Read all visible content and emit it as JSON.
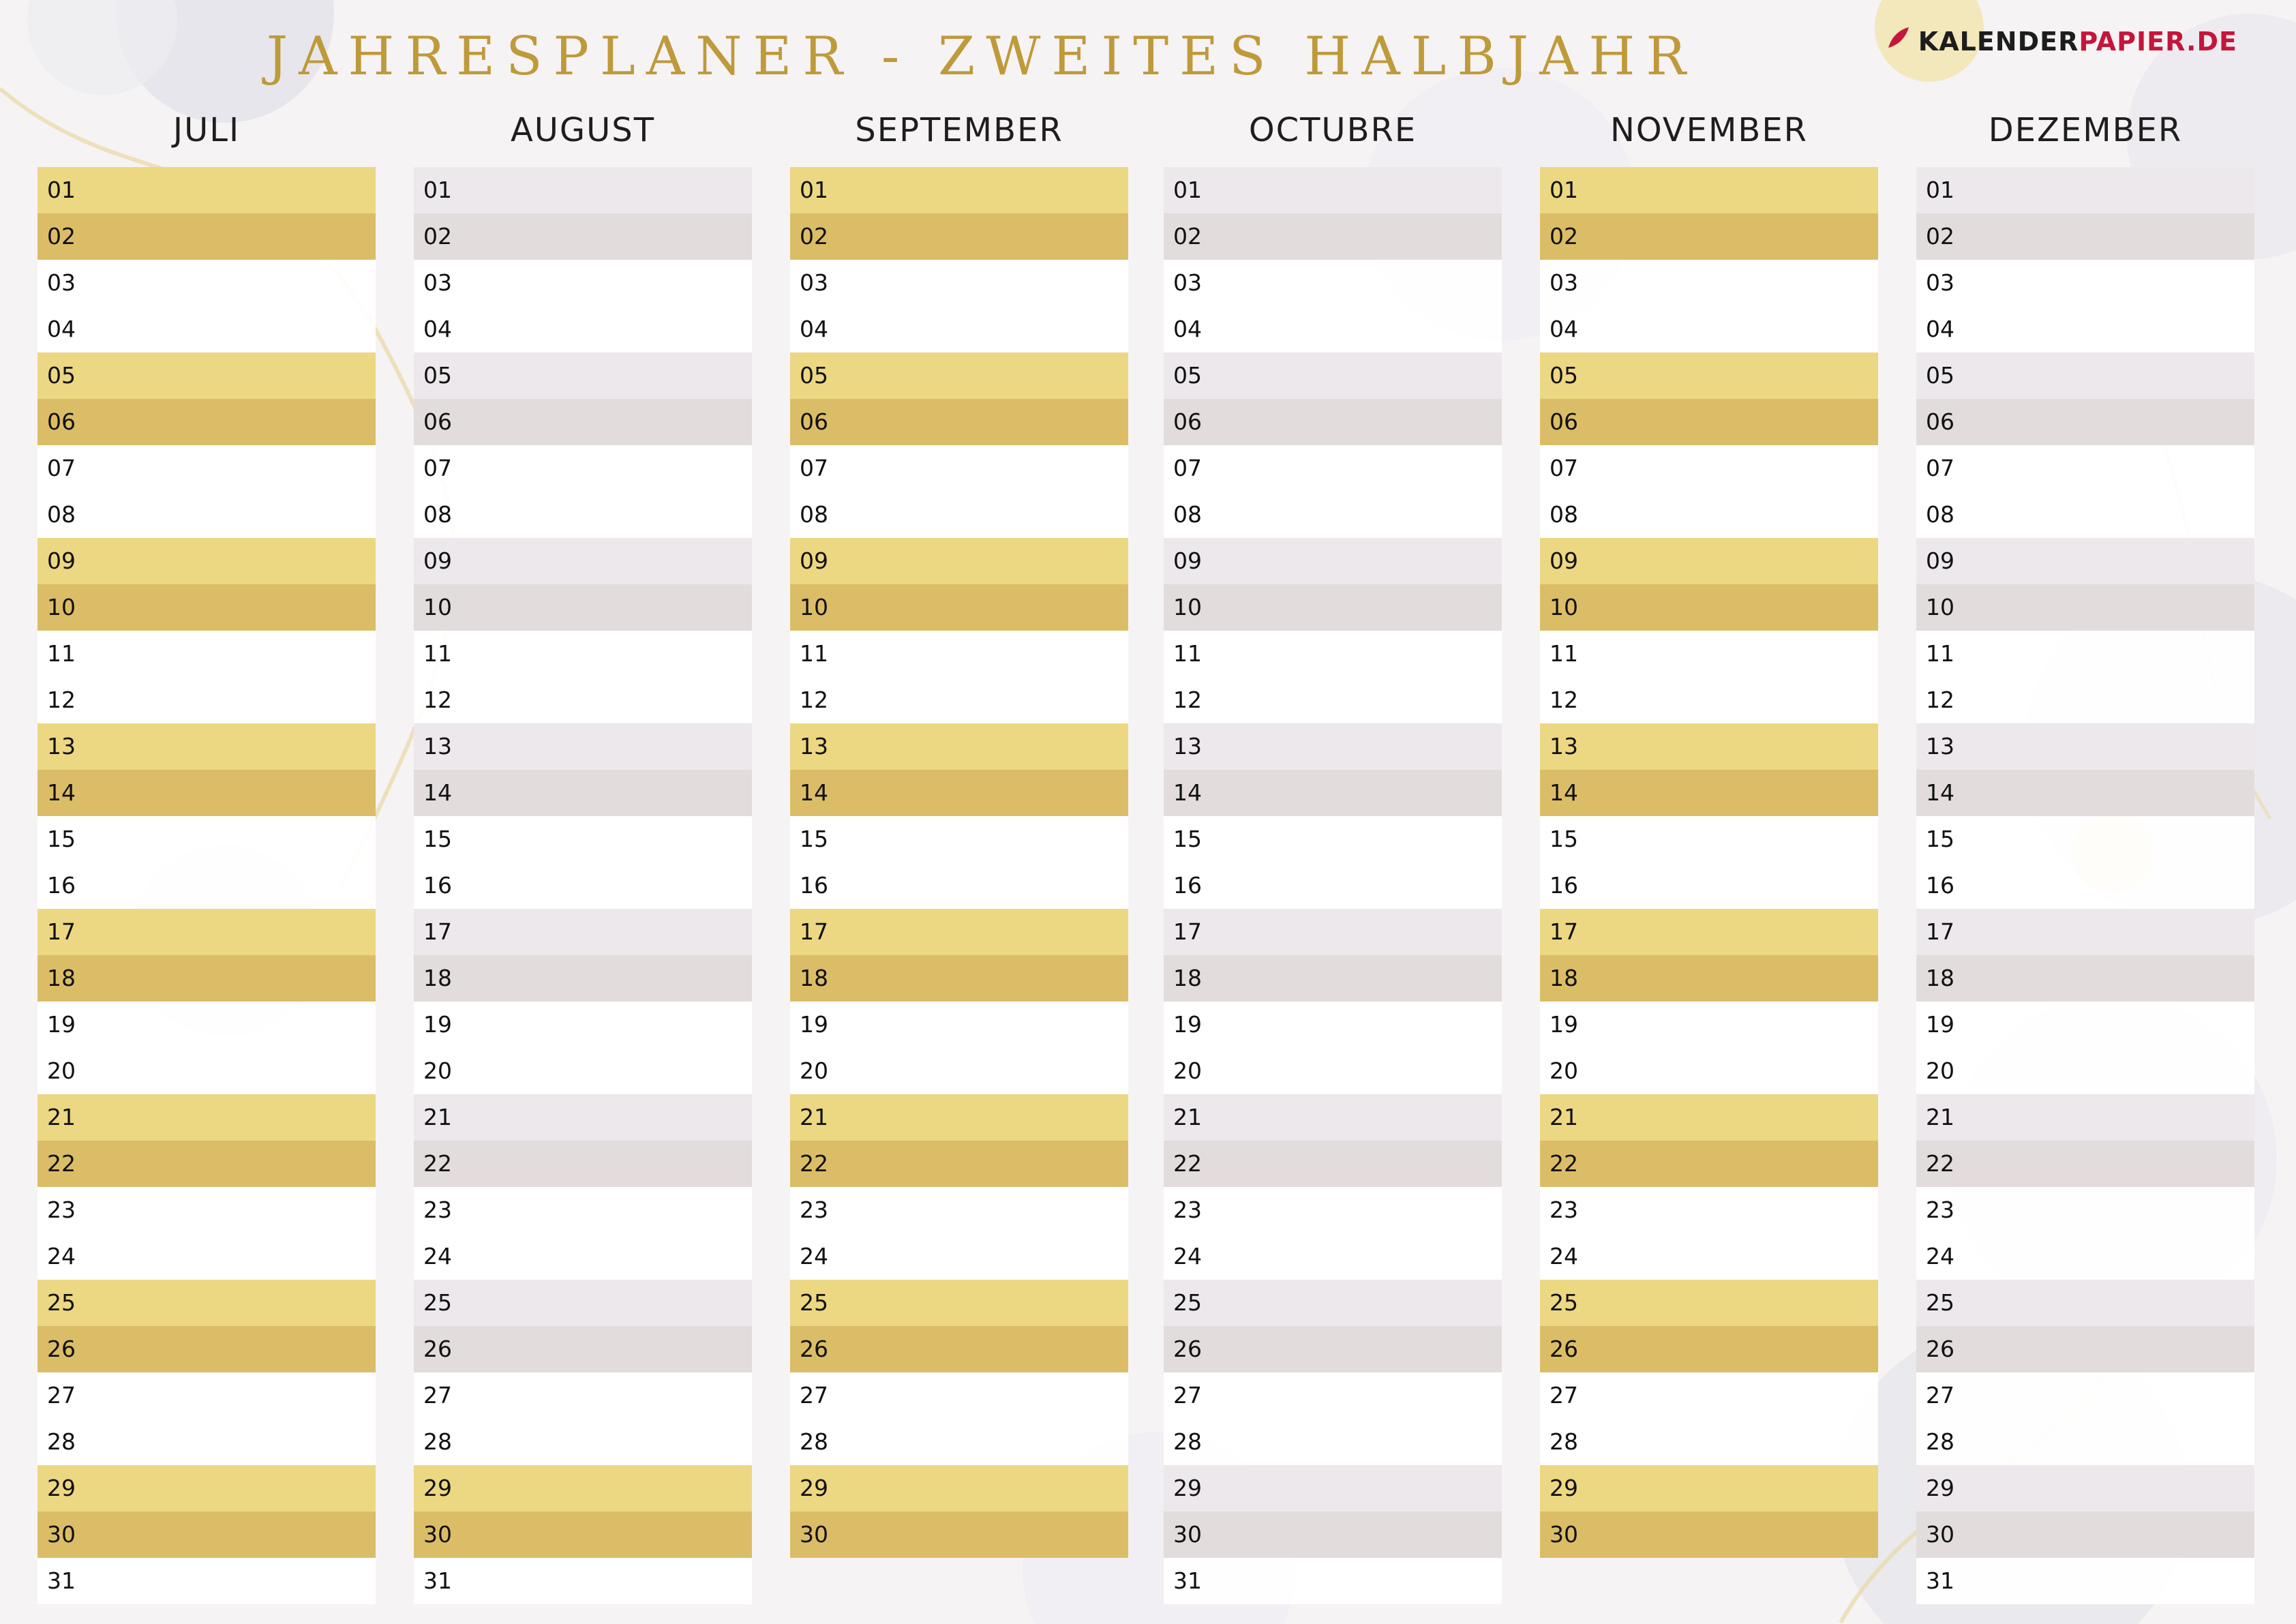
{
  "title": "JAHRESPLANER - ZWEITES HALBJAHR",
  "brand": {
    "part1": "KALENDER",
    "part2": "PAPIER.DE",
    "icon": "quill-leaf-icon",
    "color1": "#1d1d1d",
    "color2": "#c4163b"
  },
  "colors": {
    "gold_light": "#ecd783",
    "gold_dark": "#dcbd67",
    "gray_light": "#ede8eb",
    "gray_dark": "#e2dcdd",
    "title": "#bf9a3b"
  },
  "months": [
    {
      "name": "JULI",
      "style": "gold",
      "days": [
        "01",
        "02",
        "03",
        "04",
        "05",
        "06",
        "07",
        "08",
        "09",
        "10",
        "11",
        "12",
        "13",
        "14",
        "15",
        "16",
        "17",
        "18",
        "19",
        "20",
        "21",
        "22",
        "23",
        "24",
        "25",
        "26",
        "27",
        "28",
        "29",
        "30",
        "31"
      ]
    },
    {
      "name": "AUGUST",
      "style": "gray-gold-end",
      "days": [
        "01",
        "02",
        "03",
        "04",
        "05",
        "06",
        "07",
        "08",
        "09",
        "10",
        "11",
        "12",
        "13",
        "14",
        "15",
        "16",
        "17",
        "18",
        "19",
        "20",
        "21",
        "22",
        "23",
        "24",
        "25",
        "26",
        "27",
        "28",
        "29",
        "30",
        "31"
      ]
    },
    {
      "name": "SEPTEMBER",
      "style": "gold",
      "days": [
        "01",
        "02",
        "03",
        "04",
        "05",
        "06",
        "07",
        "08",
        "09",
        "10",
        "11",
        "12",
        "13",
        "14",
        "15",
        "16",
        "17",
        "18",
        "19",
        "20",
        "21",
        "22",
        "23",
        "24",
        "25",
        "26",
        "27",
        "28",
        "29",
        "30"
      ]
    },
    {
      "name": "OCTUBRE",
      "style": "gray",
      "days": [
        "01",
        "02",
        "03",
        "04",
        "05",
        "06",
        "07",
        "08",
        "09",
        "10",
        "11",
        "12",
        "13",
        "14",
        "15",
        "16",
        "17",
        "18",
        "19",
        "20",
        "21",
        "22",
        "23",
        "24",
        "25",
        "26",
        "27",
        "28",
        "29",
        "30",
        "31"
      ]
    },
    {
      "name": "NOVEMBER",
      "style": "gold",
      "days": [
        "01",
        "02",
        "03",
        "04",
        "05",
        "06",
        "07",
        "08",
        "09",
        "10",
        "11",
        "12",
        "13",
        "14",
        "15",
        "16",
        "17",
        "18",
        "19",
        "20",
        "21",
        "22",
        "23",
        "24",
        "25",
        "26",
        "27",
        "28",
        "29",
        "30"
      ]
    },
    {
      "name": "DEZEMBER",
      "style": "gray",
      "days": [
        "01",
        "02",
        "03",
        "04",
        "05",
        "06",
        "07",
        "08",
        "09",
        "10",
        "11",
        "12",
        "13",
        "14",
        "15",
        "16",
        "17",
        "18",
        "19",
        "20",
        "21",
        "22",
        "23",
        "24",
        "25",
        "26",
        "27",
        "28",
        "29",
        "30",
        "31"
      ]
    }
  ]
}
